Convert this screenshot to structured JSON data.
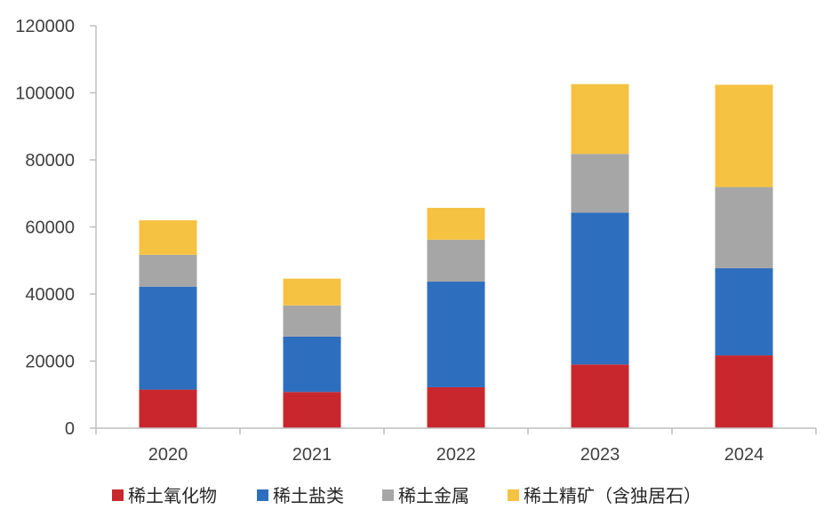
{
  "chart_data": {
    "type": "bar",
    "stacked": true,
    "categories": [
      "2020",
      "2021",
      "2022",
      "2023",
      "2024"
    ],
    "series": [
      {
        "name": "稀土氧化物",
        "color": "#C8282D",
        "values": [
          11500,
          10800,
          12200,
          19000,
          21700
        ]
      },
      {
        "name": "稀土盐类",
        "color": "#2E6EBE",
        "values": [
          30700,
          16500,
          31500,
          45300,
          26000
        ]
      },
      {
        "name": "稀土金属",
        "color": "#A6A6A6",
        "values": [
          9500,
          9300,
          12500,
          17500,
          24200
        ]
      },
      {
        "name": "稀土精矿（含独居石）",
        "color": "#F5C242",
        "values": [
          10300,
          8000,
          9500,
          20800,
          30500
        ]
      }
    ],
    "yticks": [
      "0",
      "20000",
      "40000",
      "60000",
      "80000",
      "100000",
      "120000"
    ],
    "ylim": [
      0,
      120000
    ],
    "title": "",
    "xlabel": "",
    "ylabel": "",
    "grid": false,
    "legend_position": "bottom"
  }
}
